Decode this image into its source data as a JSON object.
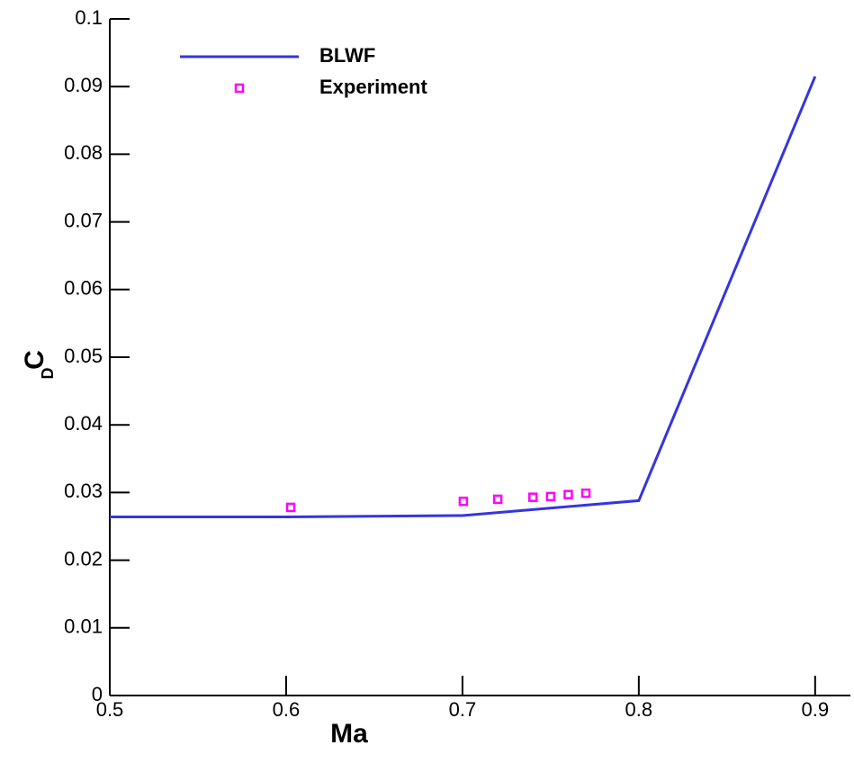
{
  "chart_data": {
    "type": "line",
    "x_label": "Ma",
    "y_label": "C",
    "y_label_subscript": "D",
    "xlim": [
      0.5,
      0.92
    ],
    "ylim": [
      0,
      0.1
    ],
    "xticks": [
      0.5,
      0.6,
      0.7,
      0.8,
      0.9
    ],
    "yticks": [
      0,
      0.01,
      0.02,
      0.03,
      0.04,
      0.05,
      0.06,
      0.07,
      0.08,
      0.09,
      0.1
    ],
    "legend": "upper-left",
    "series": [
      {
        "name": "BLWF",
        "style": "line",
        "color": "#3535e0",
        "x": [
          0.5,
          0.6,
          0.7,
          0.8,
          0.9
        ],
        "values": [
          0.0264,
          0.0264,
          0.0266,
          0.0288,
          0.0915
        ]
      },
      {
        "name": "Experiment",
        "style": "marker",
        "color": "#ff00ff",
        "x": [
          0.6026,
          0.7005,
          0.72,
          0.74,
          0.75,
          0.76,
          0.77
        ],
        "values": [
          0.0278,
          0.0287,
          0.029,
          0.0293,
          0.0294,
          0.0297,
          0.0299
        ]
      }
    ]
  }
}
